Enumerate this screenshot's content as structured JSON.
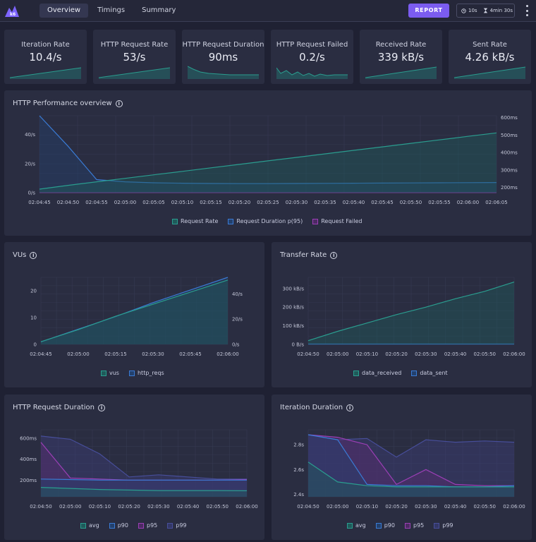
{
  "header": {
    "tabs": [
      {
        "label": "Overview",
        "active": true
      },
      {
        "label": "Timings",
        "active": false
      },
      {
        "label": "Summary",
        "active": false
      }
    ],
    "report_label": "REPORT",
    "period": "10s",
    "duration": "4min 30s"
  },
  "stats": [
    {
      "label": "Iteration Rate",
      "value": "10.4/s"
    },
    {
      "label": "HTTP Request Rate",
      "value": "53/s"
    },
    {
      "label": "HTTP Request Duration",
      "value": "90ms"
    },
    {
      "label": "HTTP Request Failed",
      "value": "0.2/s"
    },
    {
      "label": "Received Rate",
      "value": "339 kB/s"
    },
    {
      "label": "Sent Rate",
      "value": "4.26 kB/s"
    }
  ],
  "colors": {
    "teal": "#2a9d8f",
    "blue": "#3a7bd5",
    "purple": "#9b3fb5",
    "indigo": "#474e9a",
    "bg": "#1f2133",
    "card": "#2a2d41",
    "accent": "#7b5cf0"
  },
  "panels": {
    "perf": {
      "title": "HTTP Performance overview"
    },
    "vus": {
      "title": "VUs"
    },
    "transfer": {
      "title": "Transfer Rate"
    },
    "reqdur": {
      "title": "HTTP Request Duration"
    },
    "iterdur": {
      "title": "Iteration Duration"
    }
  },
  "chart_data": [
    {
      "id": "perf",
      "type": "line",
      "title": "HTTP Performance overview",
      "x": [
        "02:04:45",
        "02:04:50",
        "02:04:55",
        "02:05:00",
        "02:05:05",
        "02:05:10",
        "02:05:15",
        "02:05:20",
        "02:05:25",
        "02:05:30",
        "02:05:35",
        "02:05:40",
        "02:05:45",
        "02:05:50",
        "02:05:55",
        "02:06:00",
        "02:06:05"
      ],
      "y_left": {
        "ticks": [
          "0/s",
          "20/s",
          "40/s"
        ],
        "range": [
          0,
          53
        ]
      },
      "y_right": {
        "ticks": [
          "200ms",
          "300ms",
          "400ms",
          "500ms",
          "600ms"
        ],
        "range": [
          170,
          610
        ]
      },
      "series": [
        {
          "name": "Request Rate",
          "axis": "right",
          "values": [
            190,
            212,
            232,
            252,
            272,
            292,
            312,
            332,
            352,
            372,
            392,
            412,
            432,
            452,
            472,
            492,
            512
          ]
        },
        {
          "name": "Request Duration p(95)",
          "axis": "left",
          "values": [
            53,
            32,
            9,
            7.5,
            6.8,
            6.5,
            6.3,
            6.2,
            6.2,
            6.3,
            6.4,
            6.5,
            6.6,
            6.7,
            6.8,
            6.9,
            7
          ]
        },
        {
          "name": "Request Failed",
          "axis": "left",
          "values": [
            0.1,
            0.1,
            0.1,
            0.1,
            0.1,
            0.1,
            0.1,
            0.1,
            0.1,
            0.1,
            0.1,
            0.1,
            0.1,
            0.1,
            0.1,
            0.1,
            0.1
          ]
        }
      ],
      "legend": [
        "Request Rate",
        "Request Duration p(95)",
        "Request Failed"
      ]
    },
    {
      "id": "vus",
      "type": "area",
      "title": "VUs",
      "x": [
        "02:04:45",
        "02:05:00",
        "02:05:15",
        "02:05:30",
        "02:05:45",
        "02:06:00"
      ],
      "y_left": {
        "ticks": [
          "0",
          "10",
          "20"
        ],
        "range": [
          0,
          25
        ]
      },
      "y_right": {
        "ticks": [
          "0/s",
          "20/s",
          "40/s"
        ],
        "range": [
          0,
          53
        ]
      },
      "series": [
        {
          "name": "vus",
          "axis": "left",
          "values": [
            1,
            5.5,
            10.5,
            15,
            19.5,
            24
          ]
        },
        {
          "name": "http_reqs",
          "axis": "right",
          "values": [
            2,
            12,
            22,
            33,
            43,
            53
          ]
        }
      ],
      "legend": [
        "vus",
        "http_reqs"
      ]
    },
    {
      "id": "transfer",
      "type": "area",
      "title": "Transfer Rate",
      "x": [
        "02:04:50",
        "02:05:00",
        "02:05:10",
        "02:05:20",
        "02:05:30",
        "02:05:40",
        "02:05:50",
        "02:06:00"
      ],
      "y_left": {
        "ticks": [
          "0 B/s",
          "100 kB/s",
          "200 kB/s",
          "300 kB/s"
        ],
        "range": [
          0,
          360
        ]
      },
      "series": [
        {
          "name": "data_received",
          "values": [
            20,
            70,
            115,
            160,
            200,
            245,
            285,
            335
          ]
        },
        {
          "name": "data_sent",
          "values": [
            2,
            2,
            2,
            2,
            2,
            2,
            2,
            2
          ]
        }
      ],
      "legend": [
        "data_received",
        "data_sent"
      ]
    },
    {
      "id": "reqdur",
      "type": "area",
      "title": "HTTP Request Duration",
      "x": [
        "02:04:50",
        "02:05:00",
        "02:05:10",
        "02:05:20",
        "02:05:30",
        "02:05:40",
        "02:05:50",
        "02:06:00"
      ],
      "y_left": {
        "ticks": [
          "200ms",
          "400ms",
          "600ms"
        ],
        "range": [
          40,
          680
        ]
      },
      "series": [
        {
          "name": "avg",
          "values": [
            130,
            120,
            110,
            105,
            100,
            100,
            100,
            98
          ]
        },
        {
          "name": "p90",
          "values": [
            210,
            205,
            200,
            200,
            200,
            200,
            200,
            200
          ]
        },
        {
          "name": "p95",
          "values": [
            560,
            220,
            210,
            200,
            200,
            200,
            200,
            205
          ]
        },
        {
          "name": "p99",
          "values": [
            620,
            590,
            450,
            230,
            250,
            230,
            210,
            210
          ]
        }
      ],
      "legend": [
        "avg",
        "p90",
        "p95",
        "p99"
      ]
    },
    {
      "id": "iterdur",
      "type": "area",
      "title": "Iteration Duration",
      "x": [
        "02:04:50",
        "02:05:00",
        "02:05:10",
        "02:05:20",
        "02:05:30",
        "02:05:40",
        "02:05:50",
        "02:06:00"
      ],
      "y_left": {
        "ticks": [
          "2.4s",
          "2.6s",
          "2.8s"
        ],
        "range": [
          2.38,
          2.92
        ]
      },
      "series": [
        {
          "name": "avg",
          "values": [
            2.66,
            2.5,
            2.47,
            2.46,
            2.46,
            2.46,
            2.46,
            2.46
          ]
        },
        {
          "name": "p90",
          "values": [
            2.88,
            2.84,
            2.48,
            2.47,
            2.47,
            2.46,
            2.46,
            2.47
          ]
        },
        {
          "name": "p95",
          "values": [
            2.88,
            2.86,
            2.8,
            2.48,
            2.6,
            2.48,
            2.47,
            2.47
          ]
        },
        {
          "name": "p99",
          "values": [
            2.88,
            2.84,
            2.85,
            2.7,
            2.84,
            2.82,
            2.83,
            2.82
          ]
        }
      ],
      "legend": [
        "avg",
        "p90",
        "p95",
        "p99"
      ]
    }
  ]
}
